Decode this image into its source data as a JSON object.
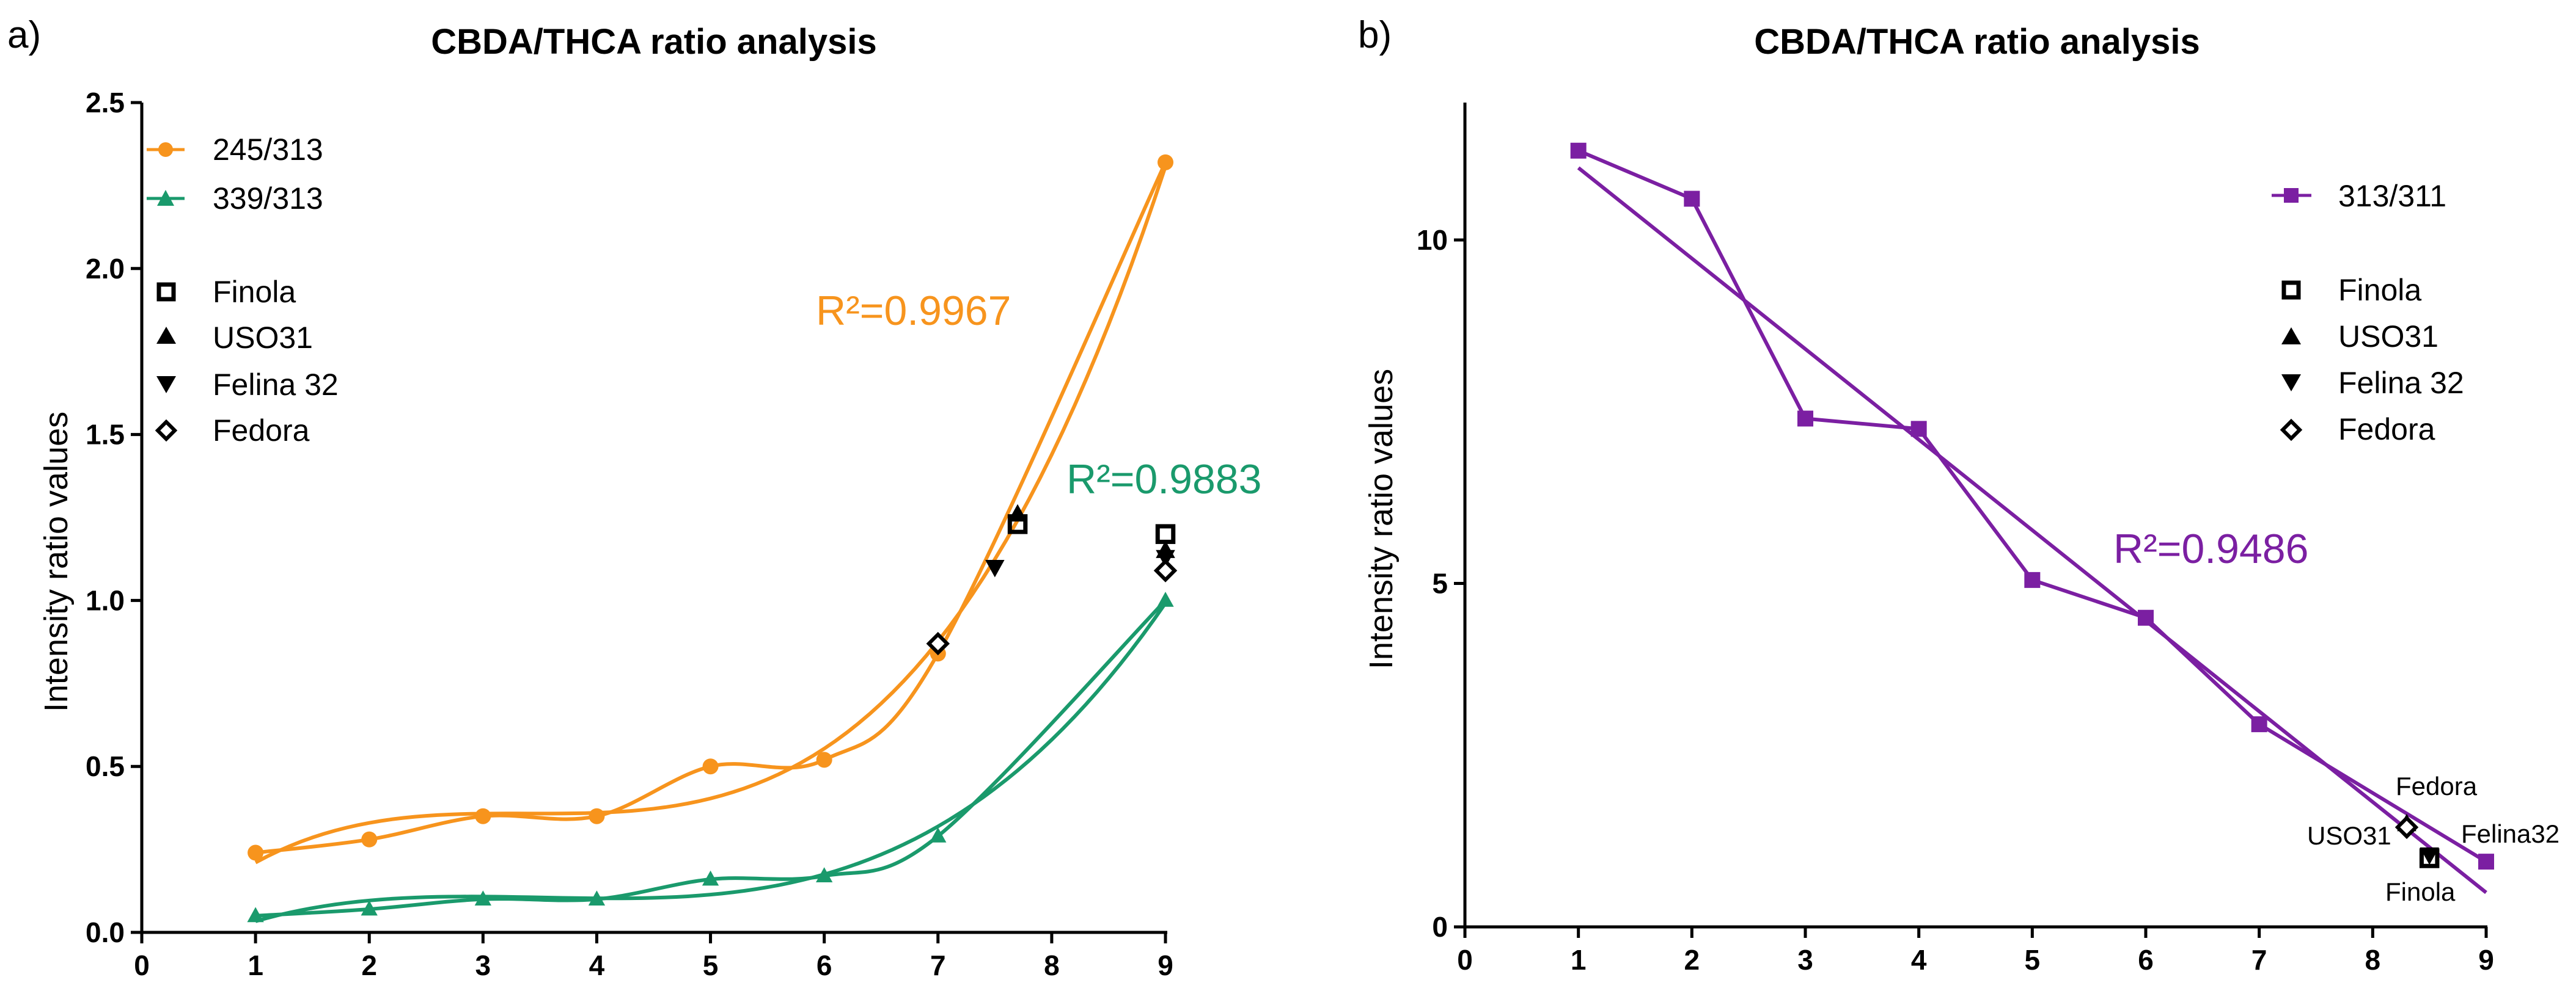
{
  "chart_data": [
    {
      "type": "line",
      "panel_label": "a)",
      "title": "CBDA/THCA ratio analysis",
      "xlabel": "",
      "ylabel": "Intensity ratio values",
      "xlim": [
        0,
        9
      ],
      "ylim": [
        0,
        2.5
      ],
      "xticks": [
        "0",
        "1",
        "2",
        "3",
        "4",
        "5",
        "6",
        "7",
        "8",
        "9"
      ],
      "yticks": [
        "0.0",
        "0.5",
        "1.0",
        "1.5",
        "2.0",
        "2.5"
      ],
      "legend_position": "top-left",
      "series": [
        {
          "name": "245/313",
          "color": "#F7941D",
          "marker": "circle",
          "x": [
            1,
            2,
            3,
            4,
            5,
            6,
            7,
            9
          ],
          "y": [
            0.24,
            0.28,
            0.35,
            0.35,
            0.5,
            0.52,
            0.84,
            2.32
          ],
          "fit_r2": "R²=0.9967"
        },
        {
          "name": "339/313",
          "color": "#1A9A6C",
          "marker": "triangle",
          "x": [
            1,
            2,
            3,
            4,
            5,
            6,
            7,
            9
          ],
          "y": [
            0.05,
            0.07,
            0.1,
            0.1,
            0.16,
            0.17,
            0.29,
            1.0
          ],
          "fit_r2": "R²=0.9883"
        }
      ],
      "samples": [
        {
          "name": "Finola",
          "marker": "square",
          "points": [
            [
              7.7,
              1.23
            ],
            [
              9,
              1.2
            ]
          ]
        },
        {
          "name": "USO31",
          "marker": "triangle-up",
          "points": [
            [
              7.7,
              1.26
            ],
            [
              9,
              1.15
            ]
          ]
        },
        {
          "name": "Felina 32",
          "marker": "triangle-down",
          "points": [
            [
              7.5,
              1.1
            ],
            [
              9,
              1.13
            ]
          ]
        },
        {
          "name": "Fedora",
          "marker": "diamond",
          "points": [
            [
              7.0,
              0.87
            ],
            [
              9,
              1.09
            ]
          ]
        }
      ]
    },
    {
      "type": "line",
      "panel_label": "b)",
      "title": "CBDA/THCA ratio analysis",
      "xlabel": "",
      "ylabel": "Intensity ratio values",
      "xlim": [
        0,
        9
      ],
      "ylim": [
        0,
        12
      ],
      "xticks": [
        "0",
        "1",
        "2",
        "3",
        "4",
        "5",
        "6",
        "7",
        "8",
        "9"
      ],
      "yticks": [
        "0",
        "5",
        "10"
      ],
      "legend_position": "top-right",
      "series": [
        {
          "name": "313/311",
          "color": "#7B1FA2",
          "marker": "square",
          "x": [
            1,
            2,
            3,
            4,
            5,
            6,
            7,
            9
          ],
          "y": [
            11.3,
            10.6,
            7.4,
            7.25,
            5.05,
            4.5,
            2.95,
            0.95
          ],
          "fit_r2": "R²=0.9486",
          "fit_line": {
            "x": [
              1,
              9
            ],
            "y": [
              11.05,
              0.5
            ]
          }
        }
      ],
      "samples": [
        {
          "name": "Finola",
          "marker": "square",
          "points": [
            [
              8.5,
              1.0
            ]
          ]
        },
        {
          "name": "USO31",
          "marker": "triangle-up",
          "points": [
            [
              8.3,
              1.5
            ]
          ]
        },
        {
          "name": "Felina 32",
          "marker": "triangle-down",
          "points": [
            [
              8.5,
              1.05
            ]
          ]
        },
        {
          "name": "Fedora",
          "marker": "diamond",
          "points": [
            [
              8.3,
              1.45
            ]
          ]
        }
      ],
      "annotations": [
        "Fedora",
        "USO31",
        "Felina32",
        "Finola"
      ]
    }
  ]
}
